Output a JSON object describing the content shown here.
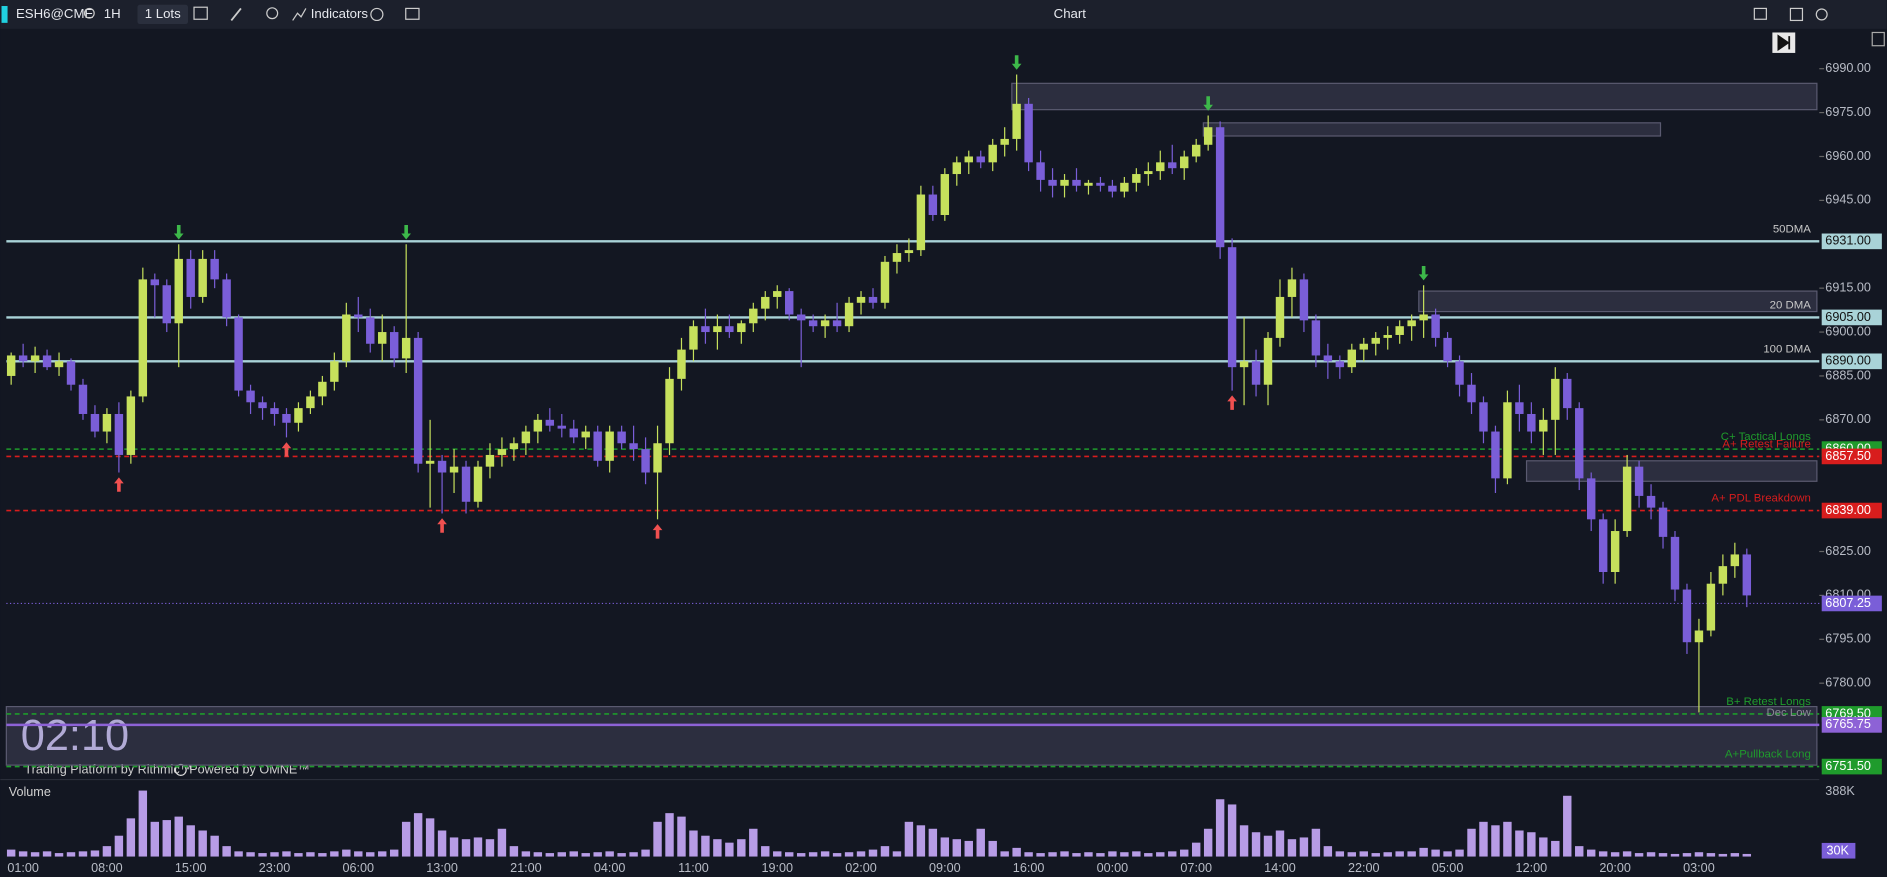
{
  "ui": {
    "symbol": "ESH6@CME",
    "interval": "1H",
    "lots": "1 Lots",
    "indicators": "Indicators",
    "title": "Chart",
    "clock": "02:10",
    "platform": "Trading Platform by Rithmic™",
    "powered": "Powered by OMNE™"
  },
  "chart_data": {
    "type": "candlestick",
    "up_color": "#c6e05c",
    "down_color": "#7a5ed8",
    "volume_color": "#b79ce6",
    "ylim": [
      6748.3,
      7003.2
    ],
    "yticks": [
      {
        "value": 6990,
        "label": "6990.00"
      },
      {
        "value": 6975,
        "label": "6975.00"
      },
      {
        "value": 6960,
        "label": "6960.00"
      },
      {
        "value": 6945,
        "label": "6945.00"
      },
      {
        "value": 6915,
        "label": "6915.00"
      },
      {
        "value": 6900,
        "label": "6900.00"
      },
      {
        "value": 6885,
        "label": "6885.00"
      },
      {
        "value": 6870,
        "label": "6870.00"
      },
      {
        "value": 6825,
        "label": "6825.00"
      },
      {
        "value": 6810,
        "label": "6810.00"
      },
      {
        "value": 6795,
        "label": "6795.00"
      },
      {
        "value": 6780,
        "label": "6780.00"
      }
    ],
    "grid": false,
    "categories": [
      null,
      "01:00",
      null,
      null,
      null,
      null,
      null,
      null,
      "08:00",
      null,
      null,
      null,
      null,
      null,
      null,
      "15:00",
      null,
      null,
      null,
      null,
      null,
      null,
      "23:00",
      null,
      null,
      null,
      null,
      null,
      null,
      "06:00",
      null,
      null,
      null,
      null,
      null,
      null,
      "13:00",
      null,
      null,
      null,
      null,
      null,
      null,
      "21:00",
      null,
      null,
      null,
      null,
      null,
      null,
      "04:00",
      null,
      null,
      null,
      null,
      null,
      null,
      "11:00",
      null,
      null,
      null,
      null,
      null,
      null,
      "19:00",
      null,
      null,
      null,
      null,
      null,
      null,
      "02:00",
      null,
      null,
      null,
      null,
      null,
      null,
      "09:00",
      null,
      null,
      null,
      null,
      null,
      null,
      "16:00",
      null,
      null,
      null,
      null,
      null,
      null,
      "00:00",
      null,
      null,
      null,
      null,
      null,
      null,
      "07:00",
      null,
      null,
      null,
      null,
      null,
      null,
      "14:00",
      null,
      null,
      null,
      null,
      null,
      null,
      "22:00",
      null,
      null,
      null,
      null,
      null,
      null,
      "05:00",
      null,
      null,
      null,
      null,
      null,
      null,
      "12:00",
      null,
      null,
      null,
      null,
      null,
      null,
      "20:00",
      null,
      null,
      null,
      null,
      null,
      null,
      "03:00",
      null,
      null,
      null,
      null
    ],
    "ohlc": [
      [
        6885,
        6893,
        6882,
        6892
      ],
      [
        6892,
        6896,
        6888,
        6890
      ],
      [
        6890,
        6895,
        6886,
        6892
      ],
      [
        6892,
        6894,
        6887,
        6888
      ],
      [
        6888,
        6893,
        6885,
        6890
      ],
      [
        6890,
        6891,
        6880,
        6882
      ],
      [
        6882,
        6884,
        6870,
        6872
      ],
      [
        6872,
        6875,
        6864,
        6866
      ],
      [
        6866,
        6874,
        6862,
        6872
      ],
      [
        6872,
        6876,
        6852,
        6858
      ],
      [
        6858,
        6880,
        6855,
        6878
      ],
      [
        6878,
        6922,
        6876,
        6918
      ],
      [
        6918,
        6920,
        6905,
        6916
      ],
      [
        6916,
        6918,
        6900,
        6903
      ],
      [
        6903,
        6930,
        6888,
        6925
      ],
      [
        6925,
        6928,
        6908,
        6912
      ],
      [
        6912,
        6928,
        6910,
        6925
      ],
      [
        6925,
        6928,
        6915,
        6918
      ],
      [
        6918,
        6920,
        6902,
        6905
      ],
      [
        6905,
        6906,
        6878,
        6880
      ],
      [
        6880,
        6882,
        6872,
        6876
      ],
      [
        6876,
        6878,
        6870,
        6874
      ],
      [
        6874,
        6876,
        6868,
        6872
      ],
      [
        6872,
        6874,
        6864,
        6869
      ],
      [
        6869,
        6876,
        6866,
        6874
      ],
      [
        6874,
        6880,
        6872,
        6878
      ],
      [
        6878,
        6885,
        6875,
        6883
      ],
      [
        6883,
        6893,
        6880,
        6890
      ],
      [
        6890,
        6910,
        6888,
        6906
      ],
      [
        6906,
        6912,
        6900,
        6905
      ],
      [
        6905,
        6908,
        6893,
        6896
      ],
      [
        6896,
        6906,
        6890,
        6900
      ],
      [
        6900,
        6902,
        6888,
        6891
      ],
      [
        6891,
        6930,
        6886,
        6898
      ],
      [
        6898,
        6900,
        6852,
        6855
      ],
      [
        6855,
        6870,
        6840,
        6856
      ],
      [
        6856,
        6858,
        6838,
        6852
      ],
      [
        6852,
        6860,
        6845,
        6854
      ],
      [
        6854,
        6856,
        6838,
        6842
      ],
      [
        6842,
        6856,
        6840,
        6854
      ],
      [
        6854,
        6862,
        6850,
        6858
      ],
      [
        6858,
        6864,
        6854,
        6860
      ],
      [
        6860,
        6864,
        6856,
        6862
      ],
      [
        6862,
        6868,
        6858,
        6866
      ],
      [
        6866,
        6872,
        6862,
        6870
      ],
      [
        6870,
        6874,
        6866,
        6868
      ],
      [
        6868,
        6872,
        6864,
        6867
      ],
      [
        6867,
        6870,
        6862,
        6864
      ],
      [
        6864,
        6868,
        6860,
        6866
      ],
      [
        6866,
        6868,
        6854,
        6856
      ],
      [
        6856,
        6868,
        6852,
        6866
      ],
      [
        6866,
        6868,
        6860,
        6862
      ],
      [
        6862,
        6868,
        6856,
        6860
      ],
      [
        6860,
        6864,
        6848,
        6852
      ],
      [
        6852,
        6868,
        6836,
        6862
      ],
      [
        6862,
        6888,
        6858,
        6884
      ],
      [
        6884,
        6898,
        6880,
        6894
      ],
      [
        6894,
        6904,
        6890,
        6902
      ],
      [
        6902,
        6908,
        6896,
        6900
      ],
      [
        6900,
        6906,
        6894,
        6902
      ],
      [
        6902,
        6906,
        6898,
        6900
      ],
      [
        6900,
        6904,
        6896,
        6903
      ],
      [
        6903,
        6910,
        6900,
        6908
      ],
      [
        6908,
        6914,
        6904,
        6912
      ],
      [
        6912,
        6916,
        6908,
        6914
      ],
      [
        6914,
        6915,
        6904,
        6906
      ],
      [
        6906,
        6908,
        6888,
        6904
      ],
      [
        6904,
        6906,
        6900,
        6902
      ],
      [
        6902,
        6906,
        6898,
        6904
      ],
      [
        6904,
        6910,
        6900,
        6902
      ],
      [
        6902,
        6912,
        6900,
        6910
      ],
      [
        6910,
        6914,
        6906,
        6912
      ],
      [
        6912,
        6915,
        6908,
        6910
      ],
      [
        6910,
        6926,
        6908,
        6924
      ],
      [
        6924,
        6930,
        6920,
        6927
      ],
      [
        6927,
        6932,
        6924,
        6928
      ],
      [
        6928,
        6950,
        6926,
        6947
      ],
      [
        6947,
        6950,
        6938,
        6940
      ],
      [
        6940,
        6956,
        6938,
        6954
      ],
      [
        6954,
        6960,
        6950,
        6958
      ],
      [
        6958,
        6962,
        6954,
        6960
      ],
      [
        6960,
        6962,
        6956,
        6958
      ],
      [
        6958,
        6966,
        6955,
        6964
      ],
      [
        6964,
        6970,
        6960,
        6966
      ],
      [
        6966,
        6988,
        6962,
        6978
      ],
      [
        6978,
        6980,
        6955,
        6958
      ],
      [
        6958,
        6962,
        6948,
        6952
      ],
      [
        6952,
        6956,
        6946,
        6950
      ],
      [
        6950,
        6954,
        6946,
        6952
      ],
      [
        6952,
        6956,
        6948,
        6950
      ],
      [
        6950,
        6952,
        6947,
        6951
      ],
      [
        6951,
        6953,
        6948,
        6950
      ],
      [
        6950,
        6952,
        6946,
        6948
      ],
      [
        6948,
        6953,
        6946,
        6951
      ],
      [
        6951,
        6956,
        6948,
        6954
      ],
      [
        6954,
        6958,
        6950,
        6955
      ],
      [
        6955,
        6962,
        6952,
        6958
      ],
      [
        6958,
        6964,
        6954,
        6956
      ],
      [
        6956,
        6962,
        6952,
        6960
      ],
      [
        6960,
        6966,
        6958,
        6964
      ],
      [
        6964,
        6974,
        6962,
        6970
      ],
      [
        6970,
        6972,
        6925,
        6929
      ],
      [
        6929,
        6932,
        6880,
        6888
      ],
      [
        6888,
        6905,
        6875,
        6890
      ],
      [
        6890,
        6894,
        6878,
        6882
      ],
      [
        6882,
        6900,
        6875,
        6898
      ],
      [
        6898,
        6918,
        6895,
        6912
      ],
      [
        6912,
        6922,
        6905,
        6918
      ],
      [
        6918,
        6920,
        6900,
        6904
      ],
      [
        6904,
        6906,
        6888,
        6892
      ],
      [
        6892,
        6896,
        6884,
        6890
      ],
      [
        6890,
        6892,
        6884,
        6888
      ],
      [
        6888,
        6896,
        6886,
        6894
      ],
      [
        6894,
        6898,
        6890,
        6896
      ],
      [
        6896,
        6900,
        6892,
        6898
      ],
      [
        6898,
        6902,
        6894,
        6899
      ],
      [
        6899,
        6904,
        6896,
        6902
      ],
      [
        6902,
        6906,
        6897,
        6904
      ],
      [
        6904,
        6916,
        6898,
        6906
      ],
      [
        6906,
        6908,
        6895,
        6898
      ],
      [
        6898,
        6900,
        6888,
        6890
      ],
      [
        6890,
        6892,
        6878,
        6882
      ],
      [
        6882,
        6886,
        6872,
        6876
      ],
      [
        6876,
        6878,
        6862,
        6866
      ],
      [
        6866,
        6868,
        6845,
        6850
      ],
      [
        6850,
        6880,
        6848,
        6876
      ],
      [
        6876,
        6882,
        6866,
        6872
      ],
      [
        6872,
        6876,
        6862,
        6866
      ],
      [
        6866,
        6874,
        6858,
        6870
      ],
      [
        6870,
        6888,
        6858,
        6884
      ],
      [
        6884,
        6886,
        6870,
        6874
      ],
      [
        6874,
        6876,
        6846,
        6850
      ],
      [
        6850,
        6852,
        6832,
        6836
      ],
      [
        6836,
        6838,
        6814,
        6818
      ],
      [
        6818,
        6836,
        6814,
        6832
      ],
      [
        6832,
        6858,
        6830,
        6854
      ],
      [
        6854,
        6856,
        6840,
        6844
      ],
      [
        6844,
        6848,
        6836,
        6840
      ],
      [
        6840,
        6842,
        6826,
        6830
      ],
      [
        6830,
        6832,
        6808,
        6812
      ],
      [
        6812,
        6814,
        6790,
        6794
      ],
      [
        6794,
        6802,
        6770,
        6798
      ],
      [
        6798,
        6818,
        6796,
        6814
      ],
      [
        6814,
        6824,
        6810,
        6820
      ],
      [
        6820,
        6828,
        6816,
        6824
      ],
      [
        6824,
        6826,
        6806,
        6810
      ]
    ],
    "volume_title": "Volume",
    "vlim": [
      0,
      388
    ],
    "vticks": [
      {
        "value": 388,
        "label": "388K"
      },
      {
        "value": 30,
        "label": "30K"
      }
    ],
    "volume": [
      40,
      30,
      25,
      30,
      20,
      25,
      30,
      35,
      60,
      120,
      220,
      380,
      200,
      210,
      230,
      180,
      150,
      120,
      60,
      30,
      25,
      20,
      25,
      30,
      20,
      25,
      20,
      30,
      40,
      30,
      25,
      30,
      40,
      200,
      250,
      220,
      150,
      110,
      100,
      110,
      100,
      160,
      60,
      30,
      25,
      20,
      25,
      30,
      20,
      25,
      30,
      20,
      25,
      40,
      200,
      250,
      230,
      150,
      120,
      100,
      80,
      100,
      160,
      60,
      30,
      25,
      20,
      25,
      30,
      20,
      25,
      30,
      40,
      60,
      30,
      200,
      180,
      160,
      110,
      100,
      90,
      160,
      90,
      30,
      50,
      25,
      20,
      25,
      30,
      20,
      25,
      20,
      30,
      25,
      30,
      20,
      25,
      30,
      40,
      80,
      160,
      330,
      300,
      180,
      140,
      120,
      150,
      100,
      110,
      160,
      60,
      30,
      25,
      30,
      20,
      25,
      30,
      30,
      50,
      40,
      30,
      40,
      160,
      200,
      180,
      200,
      150,
      140,
      110,
      90,
      350,
      60,
      40,
      30,
      25,
      30,
      20,
      25,
      20,
      15,
      20,
      25,
      20,
      15,
      20,
      15
    ],
    "zones": [
      {
        "high": 6985,
        "low": 6976
      },
      {
        "high": 6971.5,
        "low": 6967
      },
      {
        "high": 6914,
        "low": 6907
      },
      {
        "high": 6856,
        "low": 6849
      },
      {
        "high": 6772,
        "low": 6752
      }
    ],
    "levels": [
      {
        "name": "50DMA",
        "value": 6931,
        "value_label": "6931.00",
        "color": "#a9d3d8",
        "style": "solid"
      },
      {
        "name": "20 DMA",
        "value": 6905,
        "value_label": "6905.00",
        "color": "#a9d3d8",
        "style": "solid"
      },
      {
        "name": "100 DMA",
        "value": 6890,
        "value_label": "6890.00",
        "color": "#a9d3d8",
        "style": "solid"
      },
      {
        "name": "C+ Tactical Longs",
        "value": 6860,
        "value_label": "6860.00",
        "color": "#1f9b2c",
        "style": "dashed"
      },
      {
        "name": "A+ Retest Failure",
        "value": 6857.5,
        "value_label": "6857.50",
        "color": "#d81d1d",
        "style": "dashed"
      },
      {
        "name": "A+ PDL Breakdown",
        "value": 6839,
        "value_label": "6839.00",
        "color": "#d81d1d",
        "style": "dashed"
      },
      {
        "name": "B+ Retest Longs",
        "value": 6769.5,
        "value_label": "6769.50",
        "color": "#1f9b2c",
        "style": "dashed"
      },
      {
        "name": "Dec Low",
        "value": 6765.75,
        "value_label": "6765.75",
        "color": "#8d62d6",
        "style": "solid"
      },
      {
        "name": "A+Pullback Long",
        "value": 6751.5,
        "value_label": "6751.50",
        "color": "#1f9b2c",
        "style": "dashed"
      }
    ],
    "last": {
      "value": 6807.25,
      "value_label": "6807.25",
      "color": "#7a5ed8"
    }
  }
}
